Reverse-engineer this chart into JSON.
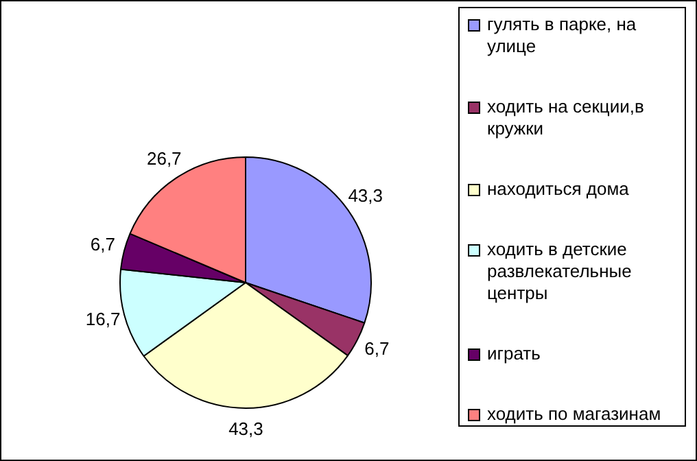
{
  "chart_data": {
    "type": "pie",
    "categories": [
      "гулять в парке, на улице",
      "ходить на секции,в кружки",
      "находиться дома",
      "ходить в детские развлекательные центры",
      "играть",
      "ходить по магазинам"
    ],
    "values": [
      43.3,
      6.7,
      43.3,
      16.7,
      6.7,
      26.7
    ],
    "colors": [
      "#9999ff",
      "#993366",
      "#ffffcc",
      "#ccffff",
      "#660066",
      "#ff8080"
    ],
    "value_labels": [
      "43,3",
      "6,7",
      "43,3",
      "16,7",
      "6,7",
      "26,7"
    ],
    "legend": "right"
  }
}
